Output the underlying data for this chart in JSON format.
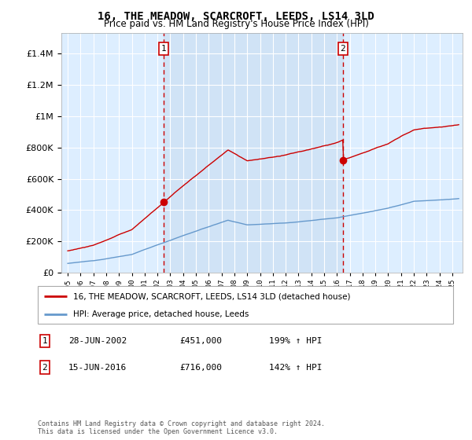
{
  "title": "16, THE MEADOW, SCARCROFT, LEEDS, LS14 3LD",
  "subtitle": "Price paid vs. HM Land Registry's House Price Index (HPI)",
  "legend_entry1": "16, THE MEADOW, SCARCROFT, LEEDS, LS14 3LD (detached house)",
  "legend_entry2": "HPI: Average price, detached house, Leeds",
  "annotation1_label": "1",
  "annotation1_date": "28-JUN-2002",
  "annotation1_price": "£451,000",
  "annotation1_hpi": "199% ↑ HPI",
  "annotation2_label": "2",
  "annotation2_date": "15-JUN-2016",
  "annotation2_price": "£716,000",
  "annotation2_hpi": "142% ↑ HPI",
  "footnote": "Contains HM Land Registry data © Crown copyright and database right 2024.\nThis data is licensed under the Open Government Licence v3.0.",
  "red_color": "#cc0000",
  "blue_color": "#6699cc",
  "bg_color": "#ddeeff",
  "bg_between": "#cce0f5",
  "ylim": [
    0,
    1500000
  ],
  "sale1_x": 2002.49,
  "sale1_y": 451000,
  "sale2_x": 2016.46,
  "sale2_y": 716000,
  "xmin": 1994.5,
  "xmax": 2025.8
}
